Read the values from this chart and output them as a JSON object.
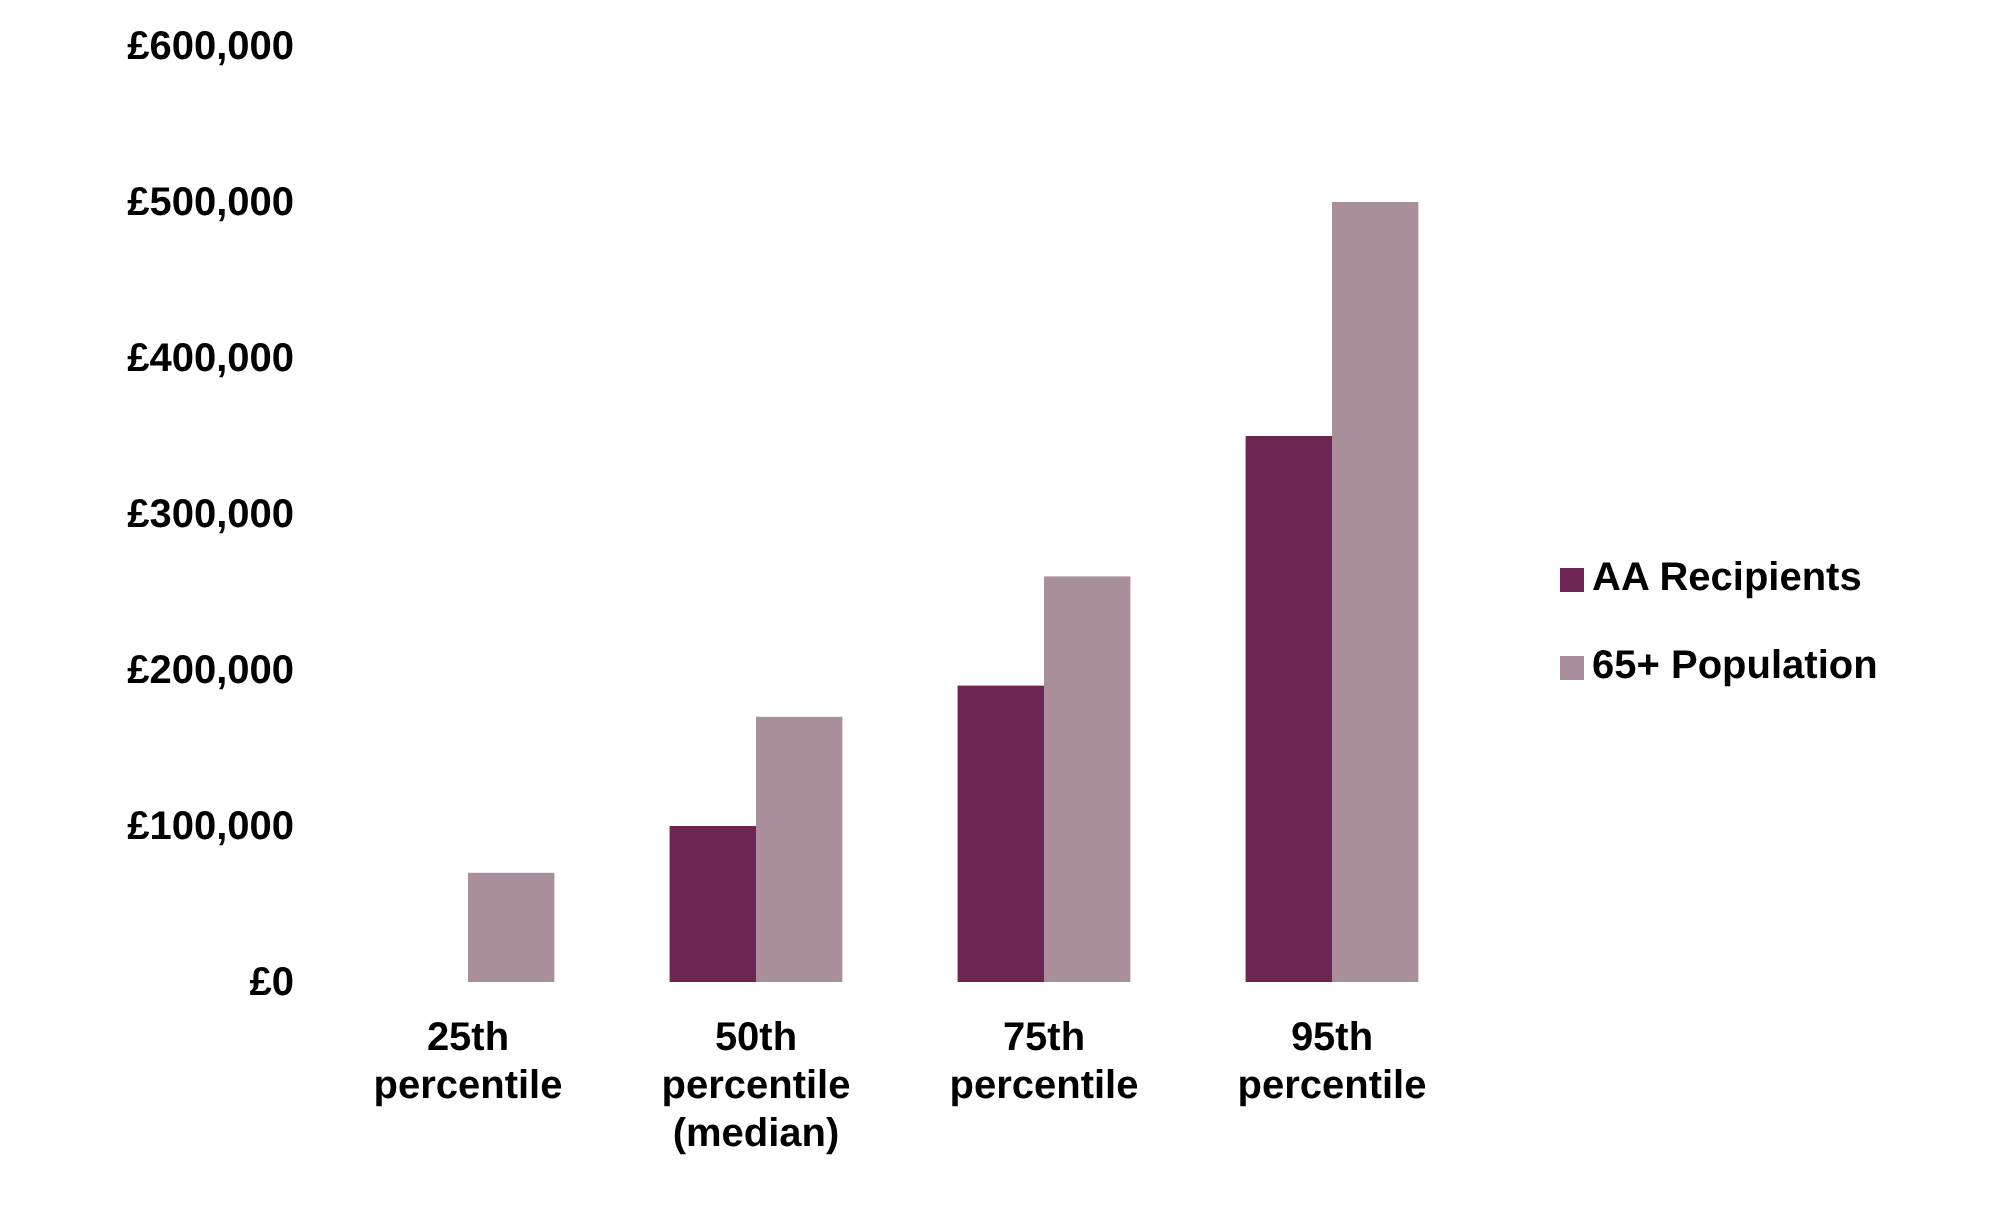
{
  "chart_data": {
    "type": "bar",
    "categories": [
      "25th percentile",
      "50th percentile (median)",
      "75th percentile",
      "95th percentile"
    ],
    "series": [
      {
        "name": "AA Recipients",
        "color": "#6d2651",
        "values": [
          0,
          100000,
          190000,
          350000
        ]
      },
      {
        "name": "65+ Population",
        "color": "#a98f9c",
        "values": [
          70000,
          170000,
          260000,
          500000
        ]
      }
    ],
    "ylim": [
      0,
      600000
    ],
    "yticks": [
      {
        "value": 0,
        "label": "£0"
      },
      {
        "value": 100000,
        "label": "£100,000"
      },
      {
        "value": 200000,
        "label": "£200,000"
      },
      {
        "value": 300000,
        "label": "£300,000"
      },
      {
        "value": 400000,
        "label": "£400,000"
      },
      {
        "value": 500000,
        "label": "£500,000"
      },
      {
        "value": 600000,
        "label": "£600,000"
      }
    ],
    "grid": false,
    "legend": "right"
  }
}
